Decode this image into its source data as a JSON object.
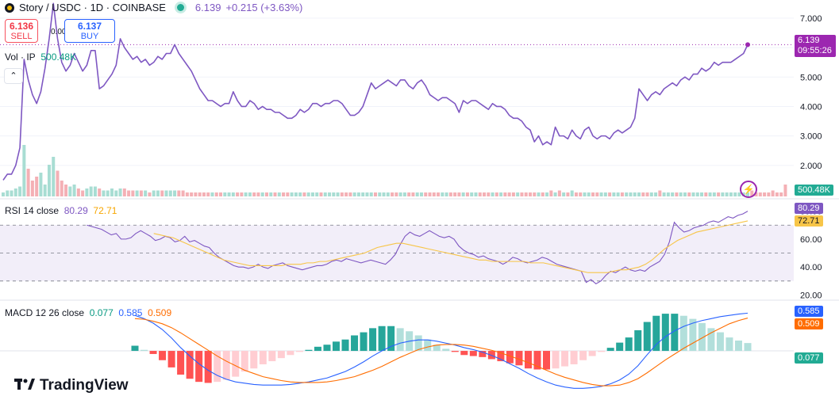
{
  "header": {
    "symbol": "Story / USDC · 1D · COINBASE",
    "last": "6.139",
    "change": "+0.215 (+3.63%)"
  },
  "trade": {
    "sell_price": "6.136",
    "sell_label": "SELL",
    "spread": "0.001",
    "buy_price": "6.137",
    "buy_label": "BUY"
  },
  "volume_legend": {
    "label": "Vol · IP",
    "value": "500.48K"
  },
  "price_tag": {
    "value": "6.139",
    "countdown": "09:55:26"
  },
  "volume_tag": "500.48K",
  "rsi_legend": {
    "label": "RSI 14 close",
    "rsi": "80.29",
    "ma": "72.71"
  },
  "rsi_tags": {
    "rsi": "80.29",
    "ma": "72.71"
  },
  "macd_legend": {
    "label": "MACD 12 26 close",
    "hist": "0.077",
    "macd": "0.585",
    "signal": "0.509"
  },
  "macd_tags": {
    "macd": "0.585",
    "signal": "0.509",
    "hist": "0.077"
  },
  "brand": "TradingView",
  "colors": {
    "price": "#7e57c2",
    "up": "#22ab94",
    "down": "#f23645",
    "macd": "#2962ff",
    "signal": "#ff6d00",
    "rsi": "#7e57c2",
    "rsi_ma": "#f7c548"
  },
  "chart_data": {
    "type": "line",
    "price": {
      "y_ticks": [
        "7.000",
        "6.000",
        "5.000",
        "4.000",
        "3.000",
        "2.000"
      ],
      "ylim": [
        1.0,
        7.4
      ],
      "values": [
        1.5,
        1.7,
        1.7,
        2.0,
        2.6,
        5.6,
        4.9,
        4.4,
        4.1,
        4.5,
        5.3,
        6.3,
        7.5,
        6.3,
        5.5,
        5.2,
        5.4,
        5.8,
        5.5,
        5.2,
        5.4,
        5.9,
        5.9,
        4.6,
        4.7,
        4.9,
        5.1,
        5.4,
        6.3,
        6.0,
        5.8,
        5.6,
        5.7,
        5.5,
        5.6,
        5.4,
        5.5,
        5.7,
        5.6,
        5.8,
        5.8,
        6.1,
        5.8,
        5.6,
        5.4,
        5.2,
        4.9,
        4.6,
        4.4,
        4.2,
        4.2,
        4.1,
        4.0,
        4.1,
        4.1,
        4.5,
        4.2,
        4.0,
        4.0,
        4.2,
        4.1,
        3.9,
        4.0,
        3.9,
        3.9,
        3.8,
        3.8,
        3.7,
        3.6,
        3.6,
        3.7,
        3.9,
        3.8,
        3.9,
        4.1,
        4.1,
        4.0,
        4.1,
        4.1,
        4.2,
        4.2,
        4.1,
        3.9,
        3.7,
        3.7,
        3.8,
        4.0,
        4.4,
        4.8,
        4.6,
        4.7,
        4.8,
        4.9,
        4.8,
        4.7,
        4.9,
        4.9,
        4.7,
        4.6,
        4.8,
        4.9,
        4.7,
        4.4,
        4.3,
        4.2,
        4.3,
        4.3,
        4.2,
        4.1,
        3.8,
        4.2,
        4.1,
        4.2,
        4.2,
        4.1,
        4.0,
        3.9,
        4.1,
        4.0,
        4.0,
        3.9,
        3.7,
        3.6,
        3.6,
        3.5,
        3.3,
        3.2,
        2.8,
        3.0,
        2.7,
        2.8,
        2.7,
        3.3,
        3.0,
        3.0,
        2.9,
        3.2,
        3.0,
        2.9,
        3.2,
        3.3,
        3.0,
        2.9,
        3.0,
        3.0,
        2.9,
        3.1,
        3.2,
        3.1,
        3.2,
        3.3,
        3.6,
        4.6,
        4.4,
        4.2,
        4.4,
        4.5,
        4.4,
        4.6,
        4.7,
        4.8,
        4.7,
        4.9,
        5.0,
        4.9,
        5.1,
        5.1,
        5.3,
        5.2,
        5.3,
        5.5,
        5.4,
        5.5,
        5.5,
        5.5,
        5.6,
        5.7,
        5.8,
        6.1
      ]
    },
    "volume": [
      2,
      3,
      3,
      4,
      5,
      26,
      14,
      8,
      10,
      12,
      6,
      16,
      20,
      13,
      8,
      6,
      5,
      6,
      4,
      3,
      4,
      5,
      5,
      4,
      3,
      3,
      4,
      3,
      4,
      4,
      3,
      3,
      3,
      3,
      3,
      2,
      3,
      3,
      3,
      3,
      3,
      3,
      3,
      3,
      2,
      2,
      2,
      2,
      2,
      2,
      2,
      2,
      2,
      2,
      2,
      2,
      2,
      2,
      2,
      2,
      2,
      2,
      2,
      2,
      2,
      2,
      2,
      2,
      2,
      2,
      2,
      2,
      2,
      2,
      2,
      2,
      2,
      2,
      2,
      2,
      2,
      2,
      2,
      2,
      2,
      2,
      2,
      2,
      2,
      2,
      2,
      2,
      2,
      2,
      2,
      2,
      2,
      2,
      2,
      2,
      2,
      2,
      2,
      2,
      2,
      2,
      2,
      2,
      2,
      2,
      2,
      2,
      2,
      2,
      2,
      2,
      2,
      2,
      2,
      2,
      2,
      2,
      2,
      2,
      2,
      2,
      2,
      2,
      2,
      2,
      2,
      3,
      2,
      3,
      2,
      2,
      3,
      2,
      2,
      2,
      2,
      2,
      2,
      2,
      2,
      2,
      2,
      2,
      2,
      2,
      2,
      2,
      2,
      2,
      2,
      2,
      2,
      3,
      2,
      2,
      2,
      2,
      2,
      2,
      2,
      2,
      2,
      2,
      2,
      2,
      2,
      2,
      2,
      2,
      2,
      2,
      2,
      2,
      2,
      3,
      2,
      2,
      2,
      2,
      3,
      2,
      2,
      6
    ],
    "rsi": {
      "y_ticks": [
        "80.00",
        "60.00",
        "40.00",
        "20.00"
      ],
      "ylim": [
        18,
        86
      ],
      "bands": [
        70,
        50,
        30
      ],
      "start": 20,
      "values": [
        70,
        69,
        68,
        67,
        65,
        63,
        64,
        60,
        60,
        61,
        64,
        66,
        64,
        62,
        59,
        60,
        62,
        61,
        58,
        59,
        62,
        58,
        59,
        57,
        55,
        54,
        50,
        47,
        45,
        43,
        41,
        40,
        40,
        39,
        40,
        42,
        40,
        39,
        41,
        42,
        43,
        41,
        40,
        39,
        38,
        39,
        40,
        41,
        41,
        42,
        44,
        45,
        44,
        46,
        45,
        44,
        43,
        44,
        45,
        44,
        43,
        42,
        45,
        49,
        56,
        62,
        65,
        63,
        62,
        64,
        66,
        64,
        62,
        61,
        62,
        60,
        55,
        52,
        50,
        49,
        47,
        48,
        46,
        45,
        44,
        42,
        44,
        47,
        46,
        44,
        43,
        44,
        45,
        47,
        46,
        44,
        42,
        41,
        40,
        39,
        38,
        37,
        29,
        31,
        28,
        30,
        34,
        37,
        36,
        38,
        40,
        38,
        37,
        38,
        37,
        40,
        42,
        44,
        49,
        58,
        72,
        68,
        65,
        66,
        68,
        69,
        70,
        72,
        73,
        72,
        74,
        76,
        75,
        77,
        78,
        80
      ]
    },
    "rsi_ma": {
      "start": 36,
      "values": [
        64,
        63,
        62,
        61,
        59,
        57,
        55,
        53,
        51,
        49,
        47,
        45,
        44,
        43,
        42,
        41,
        41,
        41,
        41,
        41,
        41,
        42,
        42,
        42,
        43,
        43,
        44,
        44,
        45,
        46,
        47,
        48,
        49,
        50,
        52,
        54,
        55,
        56,
        57,
        57,
        56,
        55,
        54,
        53,
        52,
        51,
        50,
        49,
        48,
        47,
        46,
        45,
        45,
        44,
        44,
        44,
        44,
        44,
        44,
        43,
        43,
        43,
        42,
        41,
        40,
        39,
        38,
        37,
        36,
        36,
        36,
        36,
        37,
        38,
        38,
        39,
        40,
        42,
        45,
        49,
        53,
        56,
        59,
        61,
        63,
        65,
        66,
        67,
        68,
        69,
        70,
        71,
        72,
        73
      ]
    },
    "macd": {
      "start": 160,
      "values": [
        0.55,
        0.5,
        0.43,
        0.33,
        0.2,
        0.05,
        -0.08,
        -0.2,
        -0.3,
        -0.38,
        -0.44,
        -0.48,
        -0.5,
        -0.52,
        -0.53,
        -0.53,
        -0.53,
        -0.52,
        -0.5,
        -0.48,
        -0.45,
        -0.42,
        -0.37,
        -0.32,
        -0.25,
        -0.17,
        -0.08,
        0.0,
        0.07,
        0.12,
        0.15,
        0.17,
        0.17,
        0.15,
        0.12,
        0.09,
        0.05,
        0.02,
        -0.02,
        -0.07,
        -0.13,
        -0.2,
        -0.27,
        -0.35,
        -0.42,
        -0.48,
        -0.53,
        -0.56,
        -0.58,
        -0.58,
        -0.57,
        -0.55,
        -0.51,
        -0.45,
        -0.36,
        -0.23,
        -0.06,
        0.1,
        0.22,
        0.31,
        0.38,
        0.43,
        0.47,
        0.5,
        0.53,
        0.55,
        0.57,
        0.585
      ]
    },
    "signal": {
      "values": [
        0.5,
        0.49,
        0.46,
        0.42,
        0.36,
        0.28,
        0.19,
        0.1,
        0.01,
        -0.08,
        -0.16,
        -0.23,
        -0.3,
        -0.35,
        -0.4,
        -0.43,
        -0.46,
        -0.48,
        -0.49,
        -0.49,
        -0.49,
        -0.48,
        -0.46,
        -0.43,
        -0.4,
        -0.35,
        -0.3,
        -0.24,
        -0.17,
        -0.1,
        -0.04,
        0.02,
        0.06,
        0.09,
        0.1,
        0.1,
        0.09,
        0.07,
        0.04,
        0.01,
        -0.03,
        -0.08,
        -0.13,
        -0.18,
        -0.24,
        -0.3,
        -0.36,
        -0.41,
        -0.45,
        -0.49,
        -0.52,
        -0.54,
        -0.54,
        -0.53,
        -0.49,
        -0.43,
        -0.34,
        -0.24,
        -0.14,
        -0.05,
        0.04,
        0.12,
        0.2,
        0.28,
        0.35,
        0.42,
        0.47,
        0.509
      ]
    },
    "macd_ylim": [
      -0.65,
      0.7
    ]
  }
}
